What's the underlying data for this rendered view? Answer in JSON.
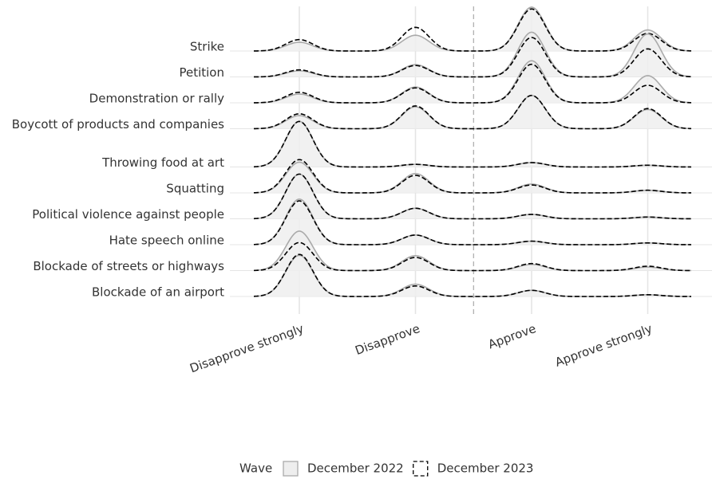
{
  "chart_data": {
    "type": "ridgeline",
    "categories": [
      "Disapprove strongly",
      "Disapprove",
      "Approve",
      "Approve strongly"
    ],
    "rows": [
      "Strike",
      "Petition",
      "Demonstration or rally",
      "Boycott of products and companies",
      "Throwing food at art",
      "Squatting",
      "Political violence against people",
      "Hate speech online",
      "Blockade of streets or highways",
      "Blockade of an airport"
    ],
    "groups": [
      4,
      6
    ],
    "divider_after": 1,
    "grid": true,
    "legend_title": "Wave",
    "legend_position": "bottom",
    "series": [
      {
        "name": "December 2022",
        "color": "#aaaaaa",
        "fill": "#eeeeee",
        "dashed": false,
        "values": [
          [
            0.1,
            0.18,
            0.5,
            0.24
          ],
          [
            0.07,
            0.14,
            0.51,
            0.49
          ],
          [
            0.1,
            0.18,
            0.48,
            0.31
          ],
          [
            0.15,
            0.25,
            0.38,
            0.22
          ],
          [
            0.52,
            0.03,
            0.05,
            0.02
          ],
          [
            0.35,
            0.22,
            0.1,
            0.03
          ],
          [
            0.51,
            0.12,
            0.05,
            0.02
          ],
          [
            0.52,
            0.11,
            0.04,
            0.02
          ],
          [
            0.45,
            0.17,
            0.07,
            0.04
          ],
          [
            0.47,
            0.14,
            0.07,
            0.02
          ]
        ]
      },
      {
        "name": "December 2023",
        "color": "#000000",
        "fill": "none",
        "dashed": true,
        "values": [
          [
            0.13,
            0.27,
            0.48,
            0.2
          ],
          [
            0.08,
            0.13,
            0.45,
            0.32
          ],
          [
            0.12,
            0.17,
            0.44,
            0.2
          ],
          [
            0.17,
            0.26,
            0.38,
            0.23
          ],
          [
            0.52,
            0.03,
            0.05,
            0.02
          ],
          [
            0.38,
            0.2,
            0.09,
            0.03
          ],
          [
            0.51,
            0.12,
            0.05,
            0.02
          ],
          [
            0.5,
            0.11,
            0.04,
            0.02
          ],
          [
            0.32,
            0.15,
            0.08,
            0.05
          ],
          [
            0.48,
            0.12,
            0.07,
            0.02
          ]
        ]
      }
    ]
  }
}
